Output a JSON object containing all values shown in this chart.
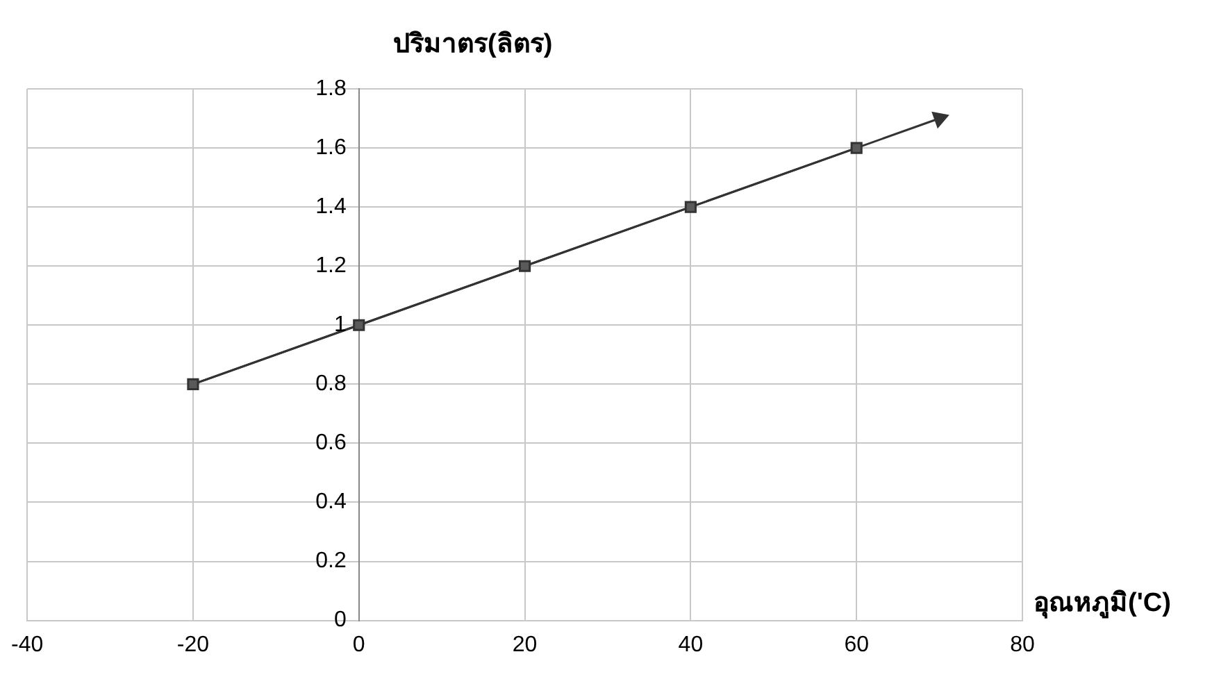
{
  "chart_data": {
    "type": "line",
    "ylabel": "ปริมาตร(ลิตร)",
    "xlabel": "อุณหภูมิ('C)",
    "x": [
      -20,
      0,
      20,
      40,
      60
    ],
    "series": [
      {
        "color": "#333333",
        "values": [
          0.8,
          1,
          1.2,
          1.4,
          1.6
        ],
        "marker": "square"
      },
      {
        "type": "line",
        "color": "#333333",
        "x": [
          -20,
          70
        ],
        "values": [
          0.8,
          1.7
        ],
        "marker": "triangle"
      }
    ],
    "xlim": [
      -40,
      80
    ],
    "xticks": [
      -40,
      -20,
      0,
      20,
      40,
      60,
      80
    ],
    "ylim": [
      0,
      1.8
    ],
    "yticks": [
      0,
      0.2,
      0.4,
      0.6,
      0.8,
      1,
      1.2,
      1.4,
      1.6,
      1.8
    ],
    "grid": true,
    "legend": false
  }
}
